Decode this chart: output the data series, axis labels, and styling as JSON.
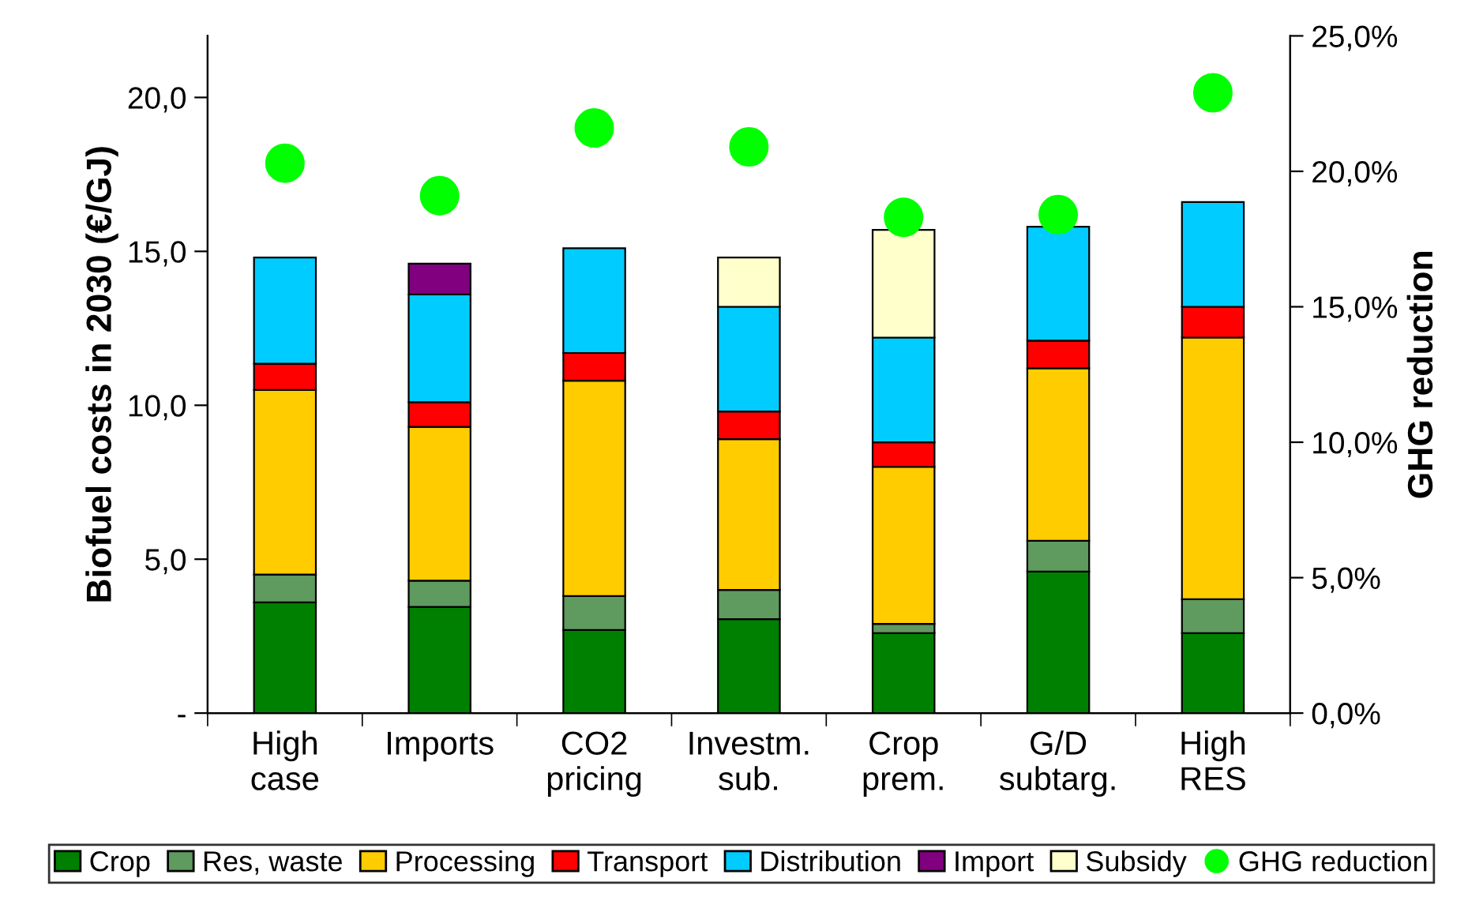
{
  "chart_data": {
    "type": "bar",
    "stacked": true,
    "ylabel": "Biofuel costs in 2030 (€/GJ)",
    "y2label": "GHG reduction",
    "categories": [
      "High\ncase",
      "Imports",
      "CO2\npricing",
      "Investm.\nsub.",
      "Crop\nprem.",
      "G/D\nsubtarg.",
      "High\nRES"
    ],
    "series": [
      {
        "name": "Crop",
        "color": "#008000",
        "values": [
          3.6,
          3.45,
          2.7,
          3.05,
          2.6,
          4.6,
          2.6
        ]
      },
      {
        "name": "Res, waste",
        "color": "#5f9a5f",
        "values": [
          0.9,
          0.85,
          1.1,
          0.95,
          0.3,
          1.0,
          1.1
        ]
      },
      {
        "name": "Processing",
        "color": "#ffcc00",
        "values": [
          6.0,
          5.0,
          7.0,
          4.9,
          5.1,
          5.6,
          8.5
        ]
      },
      {
        "name": "Transport",
        "color": "#ff0000",
        "values": [
          0.85,
          0.8,
          0.9,
          0.9,
          0.8,
          0.9,
          1.0
        ]
      },
      {
        "name": "Distribution",
        "color": "#00ccff",
        "values": [
          3.45,
          3.5,
          3.4,
          3.4,
          3.4,
          3.7,
          3.4
        ]
      },
      {
        "name": "Import",
        "color": "#800080",
        "values": [
          null,
          1.0,
          null,
          null,
          null,
          null,
          null
        ]
      },
      {
        "name": "Subsidy",
        "color": "#ffffcc",
        "values": [
          null,
          null,
          null,
          1.6,
          3.5,
          null,
          null
        ]
      },
      {
        "name": "GHG reduction",
        "type": "scatter",
        "axis": "y2",
        "marker": "circle",
        "color": "#00ff00",
        "x": [
          "High\ncase",
          "Imports",
          "CO2\npricing",
          "Investm.\nsub.",
          "Crop\nprem.",
          "G/D\nsubtarg.",
          "High\nRES"
        ],
        "values": [
          20.3,
          19.1,
          21.6,
          20.9,
          18.3,
          18.4,
          22.9
        ]
      }
    ],
    "ylim": [
      0,
      22
    ],
    "yticks": [
      {
        "value": 0,
        "label": "-"
      },
      {
        "value": 5,
        "label": "5,0"
      },
      {
        "value": 10,
        "label": "10,0"
      },
      {
        "value": 15,
        "label": "15,0"
      },
      {
        "value": 20,
        "label": "20,0"
      }
    ],
    "y2lim": [
      0,
      25
    ],
    "y2ticks": [
      {
        "value": 0,
        "label": "0,0%"
      },
      {
        "value": 5,
        "label": "5,0%"
      },
      {
        "value": 10,
        "label": "10,0%"
      },
      {
        "value": 15,
        "label": "15,0%"
      },
      {
        "value": 20,
        "label": "20,0%"
      },
      {
        "value": 25,
        "label": "25,0%"
      }
    ],
    "grid": false,
    "legend": "bottom"
  }
}
